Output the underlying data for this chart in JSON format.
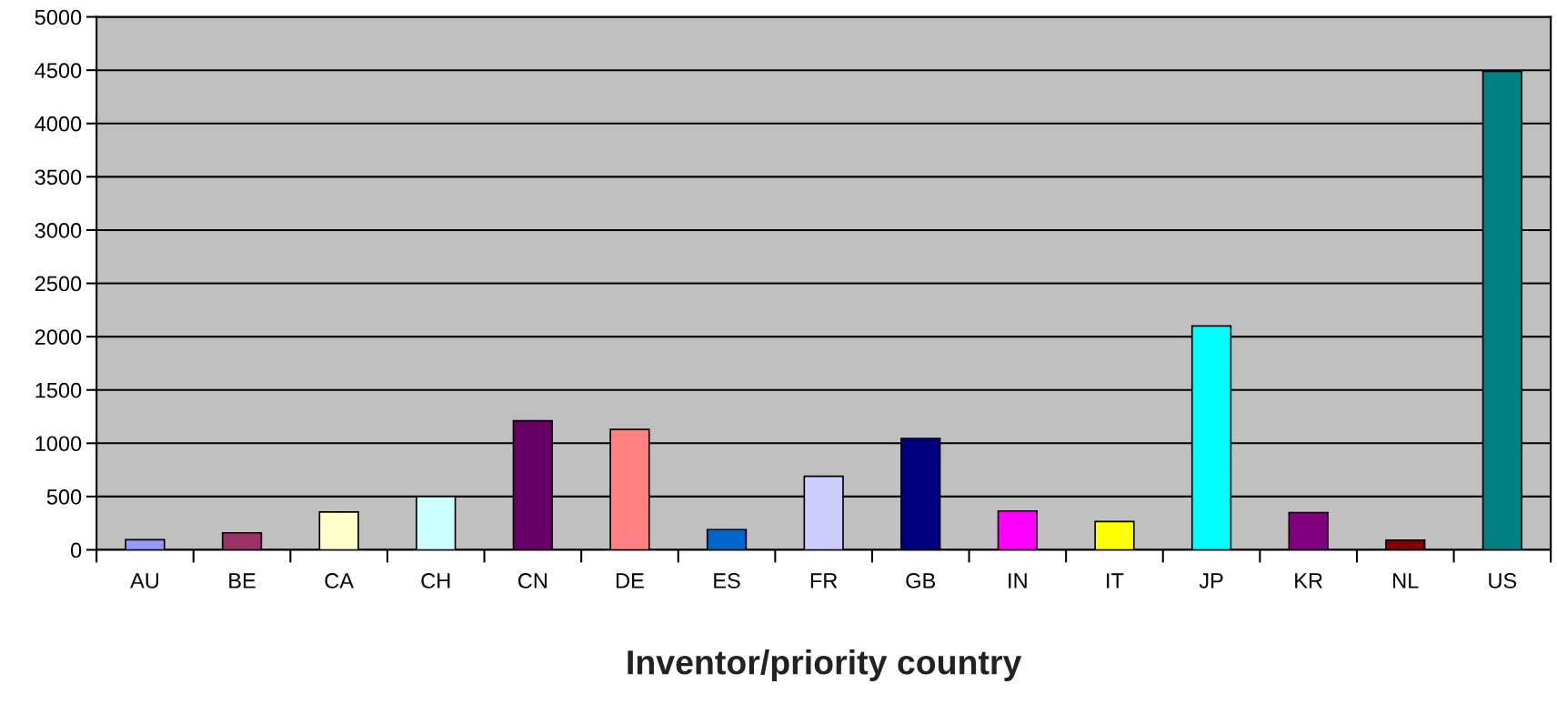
{
  "chart_data": {
    "type": "bar",
    "xlabel": "Inventor/priority country",
    "categories": [
      "AU",
      "BE",
      "CA",
      "CH",
      "CN",
      "DE",
      "ES",
      "FR",
      "GB",
      "IN",
      "IT",
      "JP",
      "KR",
      "NL",
      "US"
    ],
    "values": [
      95,
      160,
      355,
      500,
      1210,
      1130,
      190,
      690,
      1045,
      365,
      265,
      2100,
      350,
      90,
      4490
    ],
    "colors": [
      "#9999ff",
      "#993366",
      "#ffffcc",
      "#ccffff",
      "#660066",
      "#ff8080",
      "#0066cc",
      "#ccccff",
      "#000080",
      "#ff00ff",
      "#ffff00",
      "#00ffff",
      "#800080",
      "#800000",
      "#008080"
    ],
    "ylim": [
      0,
      5000
    ],
    "yticks": [
      0,
      500,
      1000,
      1500,
      2000,
      2500,
      3000,
      3500,
      4000,
      4500,
      5000
    ],
    "grid": "y"
  }
}
